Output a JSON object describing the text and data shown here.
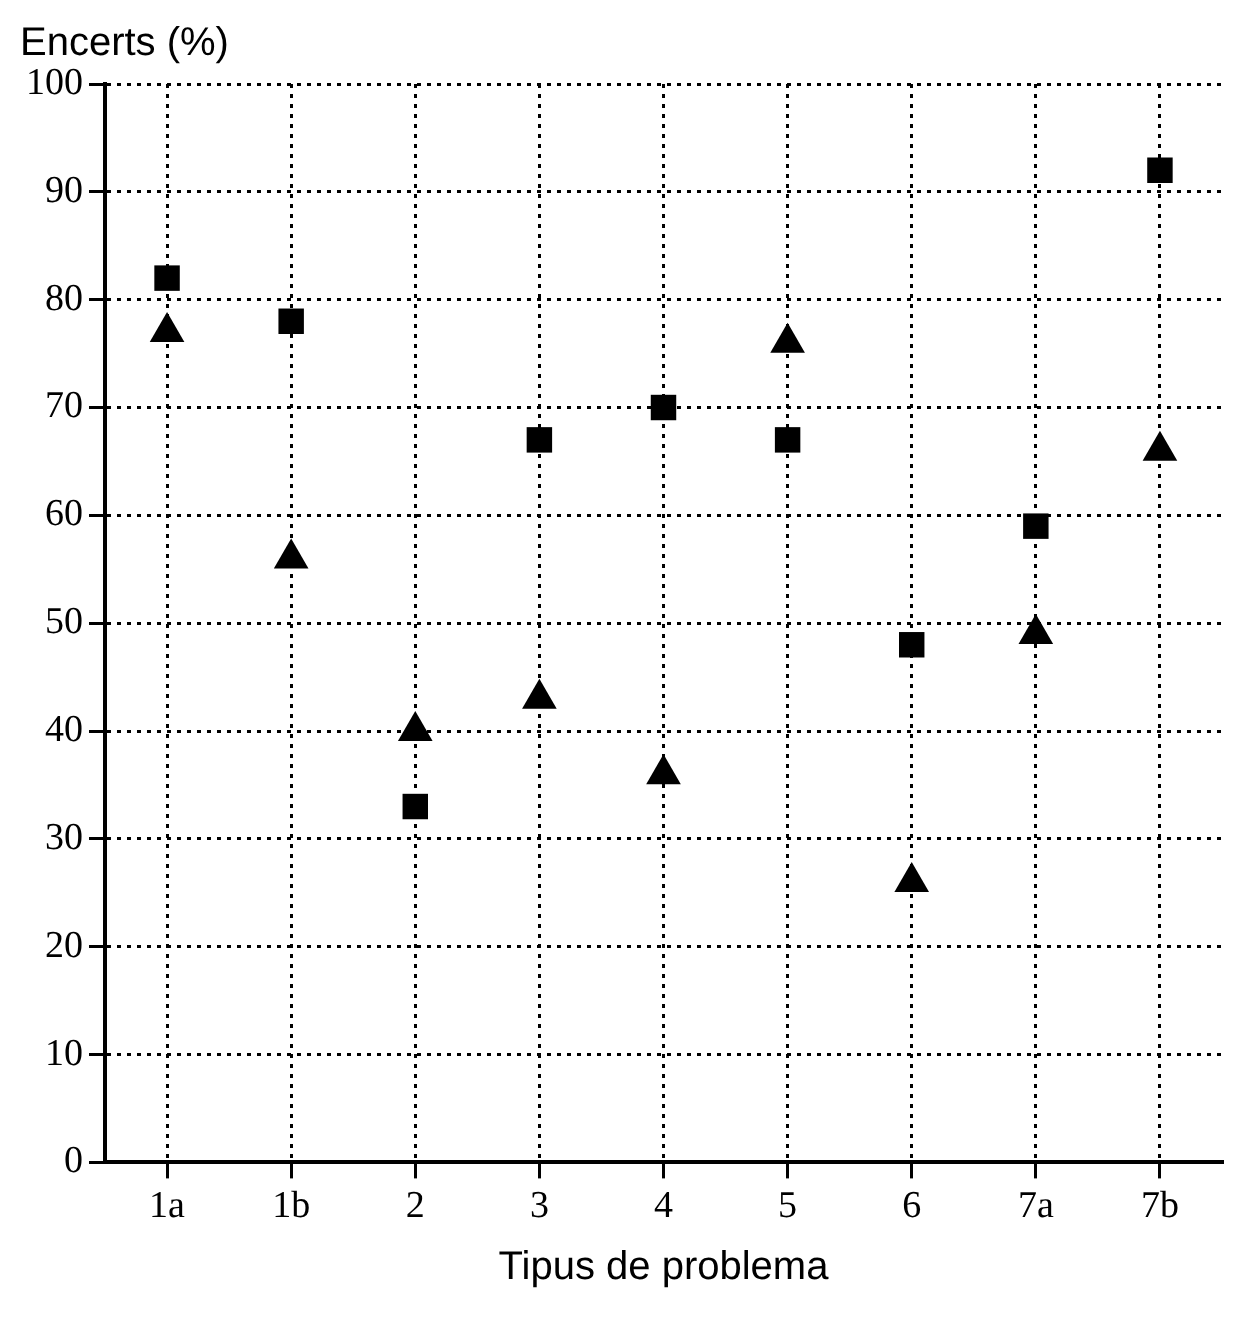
{
  "chart_data": {
    "type": "scatter",
    "ylabel": "Encerts (%)",
    "xlabel": "Tipus de problema",
    "categories": [
      "1a",
      "1b",
      "2",
      "3",
      "4",
      "5",
      "6",
      "7a",
      "7b"
    ],
    "series": [
      {
        "color": "#000000",
        "marker": "square",
        "values": [
          82,
          78,
          33,
          67,
          70,
          67,
          48,
          59,
          92
        ]
      },
      {
        "color": "#000000",
        "marker": "triangle",
        "values": [
          77,
          56,
          40,
          43,
          36,
          76,
          26,
          49,
          66
        ]
      }
    ],
    "ylim": [
      0,
      100
    ],
    "yticks": [
      0,
      10,
      20,
      30,
      40,
      50,
      60,
      70,
      80,
      90,
      100
    ],
    "grid": true,
    "legend": false
  }
}
